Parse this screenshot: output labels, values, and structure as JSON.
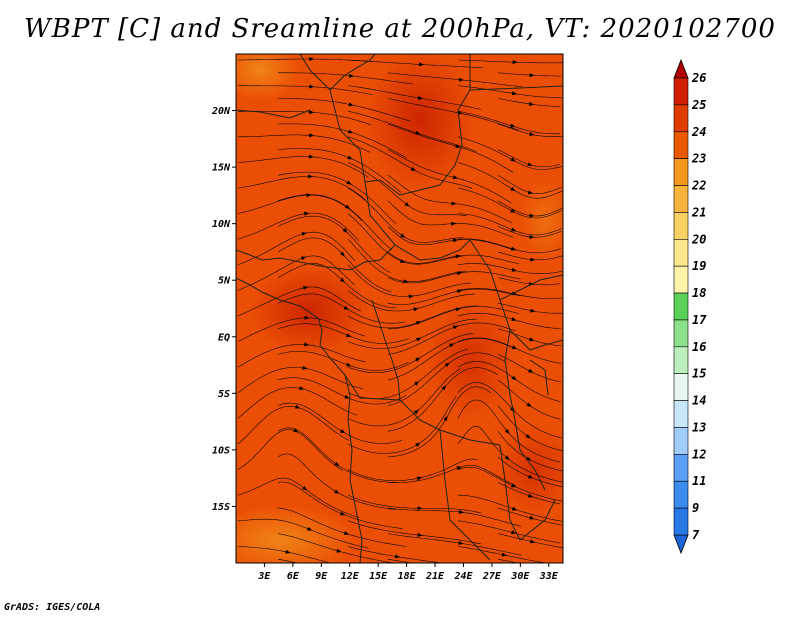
{
  "title": "WBPT [C] and Sreamline at 200hPa, VT: 2020102700",
  "credit": "GrADS: IGES/COLA",
  "map": {
    "lat_labels": [
      "20N",
      "15N",
      "10N",
      "5N",
      "EQ",
      "5S",
      "10S",
      "15S"
    ],
    "lon_labels": [
      "3E",
      "6E",
      "9E",
      "12E",
      "15E",
      "18E",
      "21E",
      "24E",
      "27E",
      "30E",
      "33E"
    ],
    "lon_range": [
      0,
      34.5
    ],
    "lat_range": [
      -20,
      25
    ]
  },
  "colorbar": {
    "labels": [
      "7",
      "9",
      "11",
      "12",
      "13",
      "14",
      "15",
      "16",
      "17",
      "18",
      "19",
      "20",
      "21",
      "22",
      "23",
      "24",
      "25",
      "26"
    ],
    "colors": [
      "#1c64d6",
      "#2878e6",
      "#3c8cf0",
      "#5aa0f5",
      "#78b4f8",
      "#a0cdfa",
      "#c8e6fa",
      "#e8f8f0",
      "#bdeebd",
      "#8ce28c",
      "#5ad25a",
      "#32be32",
      "#fff5aa",
      "#fde88c",
      "#fad264",
      "#f8b43c",
      "#f5961e",
      "#f07800",
      "#eb5a00",
      "#e13c00",
      "#d21e00",
      "#b40000"
    ]
  }
}
